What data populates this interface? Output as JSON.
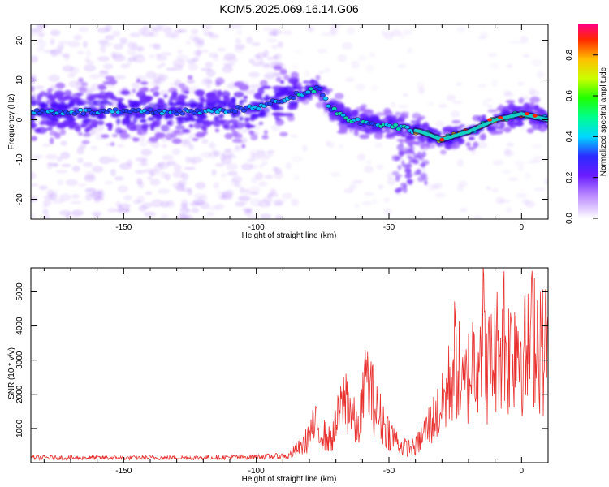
{
  "title": "KOM5.2025.069.16.14.G06",
  "colors": {
    "snr_line": "#e8312f",
    "axis": "#000000",
    "spectrogram_low": "#7b2cff"
  },
  "chart_data": [
    {
      "type": "heatmap",
      "xlabel": "Height of straight line (km)",
      "ylabel": "Frequency (Hz)",
      "xlim": [
        -185,
        10
      ],
      "ylim": [
        -25,
        24
      ],
      "xticks": [
        -150,
        -100,
        -50,
        0
      ],
      "yticks": [
        -20,
        -10,
        0,
        10,
        20
      ],
      "colorbar": {
        "label": "Normalized spectral amplitude",
        "range": [
          0,
          0.95
        ],
        "ticks": [
          0.0,
          0.2,
          0.4,
          0.6,
          0.8
        ],
        "colormap": "rainbow"
      },
      "ridge": {
        "description_points": [
          {
            "x": -185,
            "y": 2
          },
          {
            "x": -150,
            "y": 2
          },
          {
            "x": -120,
            "y": 2
          },
          {
            "x": -100,
            "y": 3
          },
          {
            "x": -90,
            "y": 5
          },
          {
            "x": -82,
            "y": 7
          },
          {
            "x": -76,
            "y": 8
          },
          {
            "x": -72,
            "y": 3
          },
          {
            "x": -65,
            "y": 0
          },
          {
            "x": -55,
            "y": -1
          },
          {
            "x": -45,
            "y": -2
          },
          {
            "x": -38,
            "y": -3
          },
          {
            "x": -30,
            "y": -5
          },
          {
            "x": -20,
            "y": -3
          },
          {
            "x": -10,
            "y": 0
          },
          {
            "x": 0,
            "y": 1.5
          },
          {
            "x": 10,
            "y": 0
          }
        ]
      }
    },
    {
      "type": "line",
      "xlabel": "Height of straight line (km)",
      "ylabel": "SNR (10 * v/v)",
      "xlim": [
        -185,
        10
      ],
      "ylim": [
        0,
        5700
      ],
      "xticks": [
        -150,
        -100,
        -50,
        0
      ],
      "yticks": [
        1000,
        2000,
        3000,
        4000,
        5000
      ],
      "series": [
        {
          "envelope": [
            {
              "x": -185,
              "y": 150
            },
            {
              "x": -150,
              "y": 140
            },
            {
              "x": -120,
              "y": 150
            },
            {
              "x": -100,
              "y": 170
            },
            {
              "x": -88,
              "y": 200
            },
            {
              "x": -82,
              "y": 600
            },
            {
              "x": -78,
              "y": 1200
            },
            {
              "x": -72,
              "y": 700
            },
            {
              "x": -66,
              "y": 2200
            },
            {
              "x": -62,
              "y": 1000
            },
            {
              "x": -58,
              "y": 2600
            },
            {
              "x": -55,
              "y": 1700
            },
            {
              "x": -50,
              "y": 1000
            },
            {
              "x": -45,
              "y": 500
            },
            {
              "x": -40,
              "y": 500
            },
            {
              "x": -35,
              "y": 1200
            },
            {
              "x": -30,
              "y": 1800
            },
            {
              "x": -27,
              "y": 2600
            },
            {
              "x": -25,
              "y": 3500
            },
            {
              "x": -22,
              "y": 2300
            },
            {
              "x": -18,
              "y": 3400
            },
            {
              "x": -15,
              "y": 4500
            },
            {
              "x": -13,
              "y": 3000
            },
            {
              "x": -10,
              "y": 3500
            },
            {
              "x": -7,
              "y": 4000
            },
            {
              "x": -5,
              "y": 3500
            },
            {
              "x": -2,
              "y": 4200
            },
            {
              "x": 2,
              "y": 3400
            },
            {
              "x": 5,
              "y": 4400
            },
            {
              "x": 8,
              "y": 3600
            },
            {
              "x": 10,
              "y": 4100
            }
          ],
          "peaks": [
            {
              "x": -59,
              "y": 3300
            },
            {
              "x": -14.5,
              "y": 5700
            },
            {
              "x": -6.5,
              "y": 5600
            },
            {
              "x": 7,
              "y": 5000
            }
          ]
        }
      ]
    }
  ]
}
